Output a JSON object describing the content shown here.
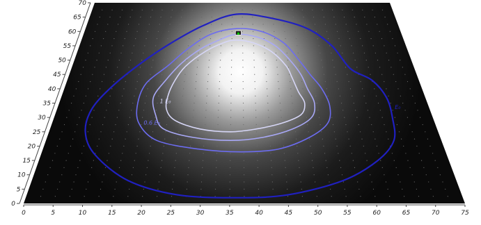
{
  "chart_data": {
    "type": "heatmap",
    "title": "",
    "xlabel": "",
    "ylabel": "",
    "xlim": [
      0,
      75
    ],
    "ylim": [
      0,
      70
    ],
    "x_ticks": [
      0,
      5,
      10,
      15,
      20,
      25,
      30,
      35,
      40,
      45,
      50,
      55,
      60,
      65,
      70,
      75
    ],
    "y_ticks": [
      0,
      5,
      10,
      15,
      20,
      25,
      30,
      35,
      40,
      45,
      50,
      55,
      60,
      65,
      70
    ],
    "contours": [
      {
        "label": "E₀",
        "level": "outer",
        "color": "#2020c0",
        "points": [
          [
            36,
            66
          ],
          [
            45,
            64.5
          ],
          [
            53,
            61
          ],
          [
            58,
            55
          ],
          [
            61,
            47
          ],
          [
            65,
            43
          ],
          [
            67,
            37
          ],
          [
            67,
            30
          ],
          [
            66,
            22
          ],
          [
            62,
            15
          ],
          [
            55,
            8
          ],
          [
            45,
            3
          ],
          [
            36,
            2
          ],
          [
            26,
            3
          ],
          [
            17,
            8
          ],
          [
            10,
            17
          ],
          [
            7,
            25
          ],
          [
            7,
            33
          ],
          [
            10,
            41
          ],
          [
            15,
            49
          ],
          [
            21,
            56
          ],
          [
            28,
            62
          ]
        ]
      },
      {
        "label": "0.6 E₀",
        "level": "mid",
        "color": "#6c6cf0",
        "points": [
          [
            36,
            61
          ],
          [
            42,
            60
          ],
          [
            47,
            56
          ],
          [
            50,
            50
          ],
          [
            52,
            45
          ],
          [
            54,
            40
          ],
          [
            55,
            34
          ],
          [
            54,
            28
          ],
          [
            50,
            23
          ],
          [
            44,
            19
          ],
          [
            37,
            18
          ],
          [
            29,
            19
          ],
          [
            21,
            22
          ],
          [
            17,
            28
          ],
          [
            16,
            35
          ],
          [
            17,
            42
          ],
          [
            21,
            48
          ],
          [
            25,
            54
          ],
          [
            30,
            59
          ]
        ]
      },
      {
        "label": "",
        "level": "inner-1",
        "color": "#a8a8f6",
        "points": [
          [
            36,
            59
          ],
          [
            41,
            58
          ],
          [
            45,
            55
          ],
          [
            48,
            50
          ],
          [
            50,
            45
          ],
          [
            51,
            40
          ],
          [
            52,
            35
          ],
          [
            51,
            30
          ],
          [
            47,
            26
          ],
          [
            41,
            23
          ],
          [
            35,
            22
          ],
          [
            28,
            23
          ],
          [
            22,
            26
          ],
          [
            20,
            31
          ],
          [
            19,
            37
          ],
          [
            21,
            43
          ],
          [
            24,
            49
          ],
          [
            28,
            54
          ],
          [
            32,
            57
          ]
        ]
      },
      {
        "label": "1 E₀",
        "level": "inner-2",
        "color": "#d6d6f6",
        "points": [
          [
            36,
            57
          ],
          [
            40,
            56
          ],
          [
            44,
            53
          ],
          [
            47,
            48
          ],
          [
            48,
            44
          ],
          [
            49,
            39
          ],
          [
            50,
            35
          ],
          [
            49,
            31
          ],
          [
            45,
            28
          ],
          [
            40,
            26
          ],
          [
            35,
            25
          ],
          [
            29,
            26
          ],
          [
            24,
            29
          ],
          [
            22,
            33
          ],
          [
            22,
            38
          ],
          [
            23,
            43
          ],
          [
            25,
            48
          ],
          [
            29,
            53
          ],
          [
            33,
            56
          ]
        ]
      }
    ],
    "contour_labels": [
      {
        "text": "E₀"
      },
      {
        "text": "0.6 E₀"
      },
      {
        "text": "1 E₀"
      }
    ],
    "source_marker": {
      "x": 36.5,
      "y": 59.5,
      "color": "#00c000"
    },
    "peak_center": {
      "x": 37,
      "y": 46
    },
    "colors": {
      "background": "#000000",
      "grid_dot": "#6b6b6b",
      "axis": "#444444",
      "peak": "#ffffff"
    }
  }
}
